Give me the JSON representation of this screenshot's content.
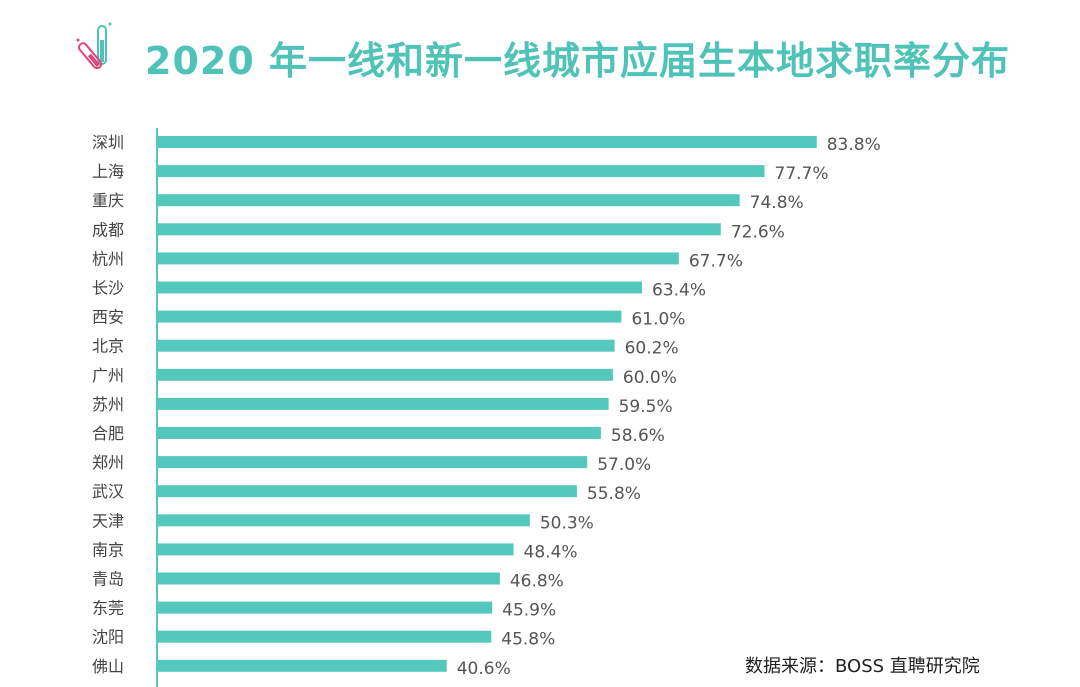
{
  "title": "2020 年一线和新一线城市应届生本地求职率分布",
  "source": "数据来源：BOSS 直聘研究院",
  "colors": {
    "bar": "#55c8bd",
    "title": "#4fc3b7",
    "icon": "#e0457b"
  },
  "chart_data": {
    "type": "bar",
    "orientation": "horizontal",
    "title": "2020 年一线和新一线城市应届生本地求职率分布",
    "categories": [
      "深圳",
      "上海",
      "重庆",
      "成都",
      "杭州",
      "长沙",
      "西安",
      "北京",
      "广州",
      "苏州",
      "合肥",
      "郑州",
      "武汉",
      "天津",
      "南京",
      "青岛",
      "东莞",
      "沈阳",
      "佛山"
    ],
    "values": [
      83.8,
      77.7,
      74.8,
      72.6,
      67.7,
      63.4,
      61.0,
      60.2,
      60.0,
      59.5,
      58.6,
      57.0,
      55.8,
      50.3,
      48.4,
      46.8,
      45.9,
      45.8,
      40.6
    ],
    "labels": [
      "83.8%",
      "77.7%",
      "74.8%",
      "72.6%",
      "67.7%",
      "63.4%",
      "61.0%",
      "60.2%",
      "60.0%",
      "59.5%",
      "58.6%",
      "57.0%",
      "55.8%",
      "50.3%",
      "48.4%",
      "46.8%",
      "45.9%",
      "45.8%",
      "40.6%"
    ],
    "grid": false,
    "legend": "none"
  }
}
